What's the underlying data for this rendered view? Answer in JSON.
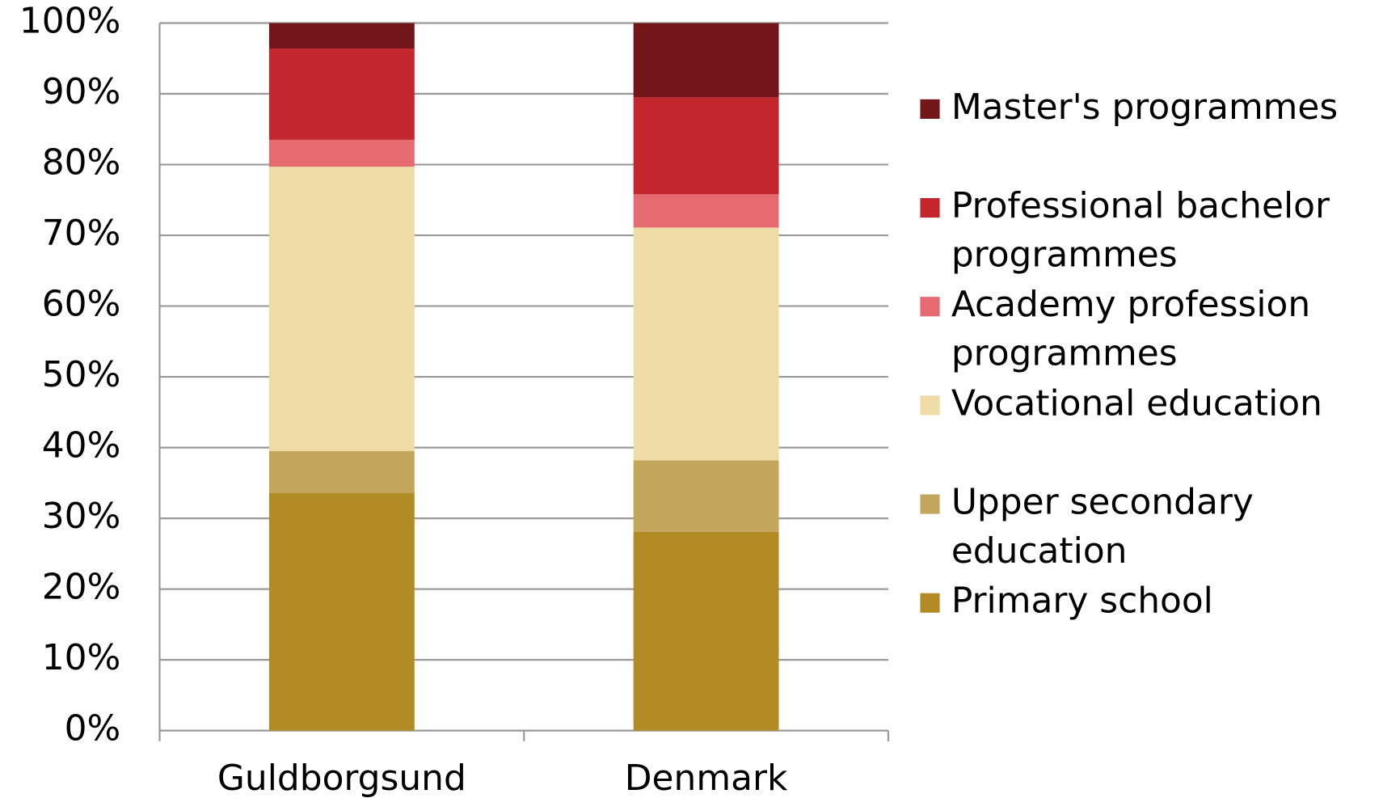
{
  "chart_data": {
    "type": "stacked_bar",
    "categories": [
      "Guldborgsund",
      "Denmark"
    ],
    "series": [
      {
        "name": "Primary school",
        "color": "#b38b24",
        "values": [
          33.6,
          28.1
        ]
      },
      {
        "name": "Upper secondary education",
        "color": "#c4a55c",
        "values": [
          5.9,
          10.1
        ]
      },
      {
        "name": "Vocational education",
        "color": "#eedba5",
        "values": [
          40.2,
          32.9
        ]
      },
      {
        "name": "Academy profession programmes",
        "color": "#e56b70",
        "values": [
          3.8,
          4.7
        ]
      },
      {
        "name": "Professional bachelor programmes",
        "color": "#c4262e",
        "values": [
          12.9,
          13.7
        ]
      },
      {
        "name": "Master's programmes",
        "color": "#731619",
        "values": [
          3.6,
          10.5
        ]
      }
    ],
    "ylim": [
      0,
      100
    ],
    "yticks": [
      {
        "value": 0,
        "label": "0%"
      },
      {
        "value": 10,
        "label": "10%"
      },
      {
        "value": 20,
        "label": "20%"
      },
      {
        "value": 30,
        "label": "30%"
      },
      {
        "value": 40,
        "label": "40%"
      },
      {
        "value": 50,
        "label": "50%"
      },
      {
        "value": 60,
        "label": "60%"
      },
      {
        "value": 70,
        "label": "70%"
      },
      {
        "value": 80,
        "label": "80%"
      },
      {
        "value": 90,
        "label": "90%"
      },
      {
        "value": 100,
        "label": "100%"
      }
    ],
    "grid": true,
    "legend": "right"
  }
}
